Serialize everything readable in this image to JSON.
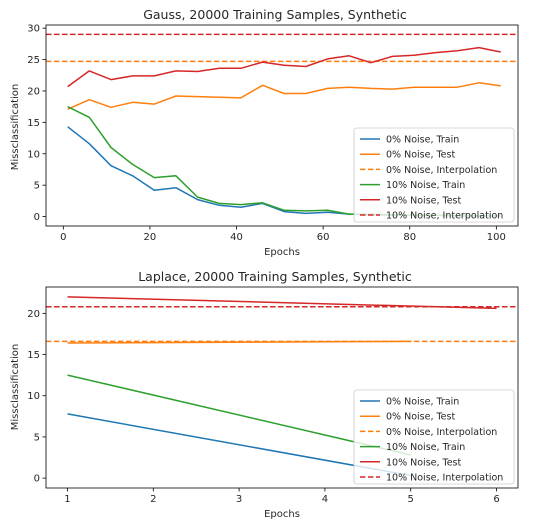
{
  "chart_data": [
    {
      "type": "line",
      "title": "Gauss, 20000 Training Samples, Synthetic",
      "xlabel": "Epochs",
      "ylabel": "Missclassification",
      "xlim": [
        -4,
        105
      ],
      "ylim": [
        -1.5,
        30.5
      ],
      "xticks": [
        0,
        20,
        40,
        60,
        80,
        100
      ],
      "yticks": [
        0,
        5,
        10,
        15,
        20,
        25,
        30
      ],
      "legend": "lower-right",
      "series": [
        {
          "name": "0% Noise, Train",
          "color": "#1f77b4",
          "dash": "solid",
          "x": [
            1,
            6,
            11,
            16,
            21,
            26,
            31,
            36,
            41,
            46,
            51,
            56,
            61,
            66,
            71,
            76,
            81,
            86,
            91,
            96,
            101
          ],
          "values": [
            14.3,
            11.6,
            8.1,
            6.5,
            4.2,
            4.6,
            2.7,
            1.8,
            1.5,
            2.1,
            0.8,
            0.5,
            0.7,
            0.4,
            0.3,
            0.2,
            0.2,
            0.2,
            0.1,
            0.1,
            0.1
          ]
        },
        {
          "name": "0% Noise, Test",
          "color": "#ff7f0e",
          "dash": "solid",
          "x": [
            1,
            6,
            11,
            16,
            21,
            26,
            31,
            36,
            41,
            46,
            51,
            56,
            61,
            66,
            71,
            76,
            81,
            86,
            91,
            96,
            101
          ],
          "values": [
            17.1,
            18.6,
            17.4,
            18.2,
            17.9,
            19.2,
            19.1,
            19.0,
            18.9,
            20.9,
            19.6,
            19.6,
            20.4,
            20.6,
            20.4,
            20.3,
            20.6,
            20.6,
            20.6,
            21.3,
            20.8
          ]
        },
        {
          "name": "0% Noise, Interpolation",
          "color": "#ff7f0e",
          "dash": "dashed",
          "x": [
            -4,
            105
          ],
          "values": [
            24.7,
            24.7
          ]
        },
        {
          "name": "10% Noise, Train",
          "color": "#2ca02c",
          "dash": "solid",
          "x": [
            1,
            6,
            11,
            16,
            21,
            26,
            31,
            36,
            41,
            46,
            51,
            56,
            61,
            66,
            71,
            76,
            81,
            86,
            91,
            96,
            101
          ],
          "values": [
            17.5,
            15.8,
            11.0,
            8.3,
            6.2,
            6.5,
            3.1,
            2.1,
            1.9,
            2.2,
            1.0,
            0.9,
            1.0,
            0.4,
            0.4,
            0.3,
            0.2,
            0.2,
            0.1,
            0.1,
            0.1
          ]
        },
        {
          "name": "10% Noise, Test",
          "color": "#d62728",
          "dash": "solid",
          "x": [
            1,
            6,
            11,
            16,
            21,
            26,
            31,
            36,
            41,
            46,
            51,
            56,
            61,
            66,
            71,
            76,
            81,
            86,
            91,
            96,
            101
          ],
          "values": [
            20.7,
            23.2,
            21.8,
            22.4,
            22.4,
            23.2,
            23.1,
            23.6,
            23.6,
            24.6,
            24.1,
            23.9,
            25.1,
            25.6,
            24.5,
            25.5,
            25.7,
            26.1,
            26.4,
            26.9,
            26.2
          ]
        },
        {
          "name": "10% Noise, Interpolation",
          "color": "#d62728",
          "dash": "dashed",
          "x": [
            -4,
            105
          ],
          "values": [
            29.0,
            29.0
          ]
        }
      ]
    },
    {
      "type": "line",
      "title": "Laplace, 20000 Training Samples, Synthetic",
      "xlabel": "Epochs",
      "ylabel": "Missclassification",
      "xlim": [
        0.75,
        6.25
      ],
      "ylim": [
        -1.2,
        23.2
      ],
      "xticks": [
        1,
        2,
        3,
        4,
        5,
        6
      ],
      "yticks": [
        0,
        5,
        10,
        15,
        20
      ],
      "legend": "lower-right",
      "series": [
        {
          "name": "0% Noise, Train",
          "color": "#1f77b4",
          "dash": "solid",
          "x": [
            1,
            5
          ],
          "values": [
            7.8,
            0.3
          ]
        },
        {
          "name": "0% Noise, Test",
          "color": "#ff7f0e",
          "dash": "solid",
          "x": [
            1,
            5
          ],
          "values": [
            16.4,
            16.6
          ]
        },
        {
          "name": "0% Noise, Interpolation",
          "color": "#ff7f0e",
          "dash": "dashed",
          "x": [
            0.75,
            6.25
          ],
          "values": [
            16.6,
            16.6
          ]
        },
        {
          "name": "10% Noise, Train",
          "color": "#2ca02c",
          "dash": "solid",
          "x": [
            1,
            5
          ],
          "values": [
            12.5,
            2.8
          ]
        },
        {
          "name": "10% Noise, Test",
          "color": "#d62728",
          "dash": "solid",
          "x": [
            1,
            6
          ],
          "values": [
            22.0,
            20.6
          ]
        },
        {
          "name": "10% Noise, Interpolation",
          "color": "#d62728",
          "dash": "dashed",
          "x": [
            0.75,
            6.25
          ],
          "values": [
            20.8,
            20.8
          ]
        }
      ]
    }
  ]
}
